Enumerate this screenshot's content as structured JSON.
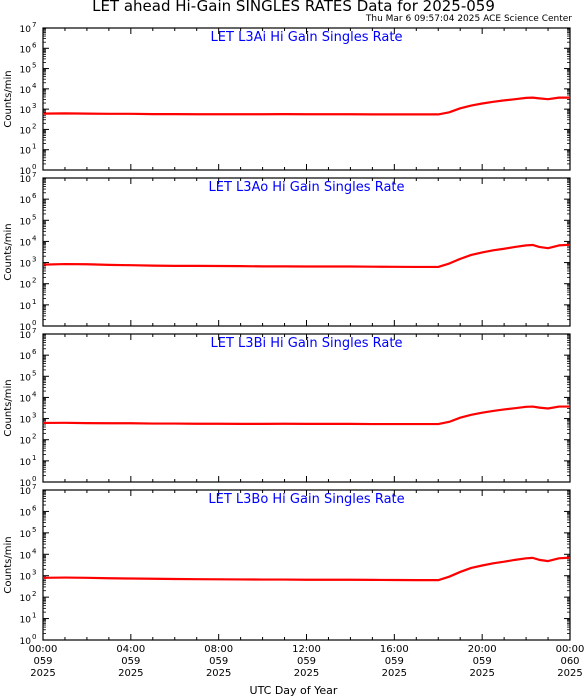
{
  "title": "LET ahead Hi-Gain SINGLES RATES Data for 2025-059",
  "timestamp": "Thu Mar  6 09:57:04 2025 ACE Science Center",
  "chart_data": [
    {
      "type": "line",
      "title": "LET L3Ai Hi Gain Singles Rate",
      "ylabel": "Counts/min",
      "yscale": "log",
      "ylim": [
        1,
        10000000
      ],
      "xlim": [
        0,
        24
      ],
      "series": [
        {
          "x": [
            0,
            1,
            2,
            3,
            4,
            5,
            6,
            7,
            8,
            9,
            10,
            11,
            12,
            13,
            14,
            15,
            16,
            17,
            18,
            18.5,
            19,
            19.5,
            20,
            20.5,
            21,
            21.5,
            22,
            22.3,
            22.6,
            23,
            23.5,
            24
          ],
          "values": [
            600,
            620,
            600,
            590,
            590,
            570,
            570,
            560,
            560,
            560,
            560,
            570,
            560,
            560,
            560,
            550,
            550,
            550,
            550,
            700,
            1100,
            1500,
            1900,
            2300,
            2700,
            3100,
            3600,
            3700,
            3400,
            3100,
            3700,
            3700
          ]
        }
      ],
      "color": "#ff0000"
    },
    {
      "type": "line",
      "title": "LET L3Ao Hi Gain Singles Rate",
      "ylabel": "Counts/min",
      "yscale": "log",
      "ylim": [
        1,
        10000000
      ],
      "xlim": [
        0,
        24
      ],
      "series": [
        {
          "x": [
            0,
            1,
            2,
            3,
            4,
            5,
            6,
            7,
            8,
            9,
            10,
            11,
            12,
            13,
            14,
            15,
            16,
            17,
            18,
            18.5,
            19,
            19.5,
            20,
            20.5,
            21,
            21.5,
            22,
            22.3,
            22.6,
            23,
            23.5,
            24
          ],
          "values": [
            800,
            850,
            830,
            780,
            750,
            720,
            700,
            700,
            690,
            680,
            660,
            660,
            650,
            650,
            650,
            640,
            630,
            620,
            620,
            900,
            1500,
            2300,
            3000,
            3800,
            4500,
            5500,
            6500,
            6800,
            5500,
            4800,
            6500,
            7000
          ]
        }
      ],
      "color": "#ff0000"
    },
    {
      "type": "line",
      "title": "LET L3Bi Hi Gain Singles Rate",
      "ylabel": "Counts/min",
      "yscale": "log",
      "ylim": [
        1,
        10000000
      ],
      "xlim": [
        0,
        24
      ],
      "series": [
        {
          "x": [
            0,
            1,
            2,
            3,
            4,
            5,
            6,
            7,
            8,
            9,
            10,
            11,
            12,
            13,
            14,
            15,
            16,
            17,
            18,
            18.5,
            19,
            19.5,
            20,
            20.5,
            21,
            21.5,
            22,
            22.3,
            22.6,
            23,
            23.5,
            24
          ],
          "values": [
            620,
            630,
            610,
            600,
            600,
            580,
            580,
            570,
            570,
            560,
            560,
            570,
            560,
            560,
            560,
            550,
            550,
            550,
            550,
            700,
            1100,
            1500,
            1900,
            2300,
            2700,
            3100,
            3600,
            3700,
            3300,
            3000,
            3700,
            3700
          ]
        }
      ],
      "color": "#ff0000"
    },
    {
      "type": "line",
      "title": "LET L3Bo Hi Gain Singles Rate",
      "ylabel": "Counts/min",
      "yscale": "log",
      "ylim": [
        1,
        10000000
      ],
      "xlim": [
        0,
        24
      ],
      "series": [
        {
          "x": [
            0,
            1,
            2,
            3,
            4,
            5,
            6,
            7,
            8,
            9,
            10,
            11,
            12,
            13,
            14,
            15,
            16,
            17,
            18,
            18.5,
            19,
            19.5,
            20,
            20.5,
            21,
            21.5,
            22,
            22.3,
            22.6,
            23,
            23.5,
            24
          ],
          "values": [
            800,
            820,
            800,
            760,
            740,
            720,
            700,
            690,
            680,
            670,
            660,
            660,
            650,
            650,
            650,
            640,
            630,
            620,
            620,
            900,
            1500,
            2300,
            3000,
            3800,
            4500,
            5500,
            6500,
            6800,
            5500,
            4800,
            6500,
            7000
          ]
        }
      ],
      "color": "#ff0000"
    }
  ],
  "y_tick_labels": [
    "10",
    "10",
    "10",
    "10",
    "10",
    "10",
    "10",
    "10"
  ],
  "y_tick_exponents": [
    "0",
    "1",
    "2",
    "3",
    "4",
    "5",
    "6",
    "7"
  ],
  "x_ticks": [
    {
      "x": 0,
      "time": "00:00",
      "day": "059",
      "year": "2025"
    },
    {
      "x": 4,
      "time": "04:00",
      "day": "059",
      "year": "2025"
    },
    {
      "x": 8,
      "time": "08:00",
      "day": "059",
      "year": "2025"
    },
    {
      "x": 12,
      "time": "12:00",
      "day": "059",
      "year": "2025"
    },
    {
      "x": 16,
      "time": "16:00",
      "day": "059",
      "year": "2025"
    },
    {
      "x": 20,
      "time": "20:00",
      "day": "059",
      "year": "2025"
    },
    {
      "x": 24,
      "time": "00:00",
      "day": "060",
      "year": "2025"
    }
  ],
  "xlabel": "UTC Day of Year",
  "colors": {
    "line": "#ff0000",
    "panel_title": "#0000ff",
    "axes": "#000000"
  }
}
